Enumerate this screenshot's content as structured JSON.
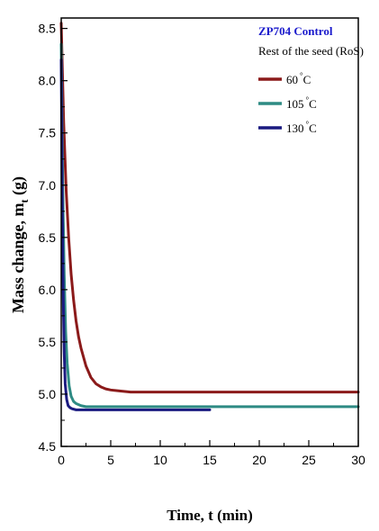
{
  "chart_data": {
    "type": "line",
    "xlabel": "Time, t (min)",
    "ylabel": "Mass change, m",
    "ylabel_subscript": "t",
    "ylabel_unit": " (g)",
    "xlim": [
      0,
      30
    ],
    "ylim": [
      4.5,
      8.6
    ],
    "xticks": [
      0,
      5,
      10,
      15,
      20,
      25,
      30
    ],
    "yticks": [
      4.5,
      5.0,
      5.5,
      6.0,
      6.5,
      7.0,
      7.5,
      8.0,
      8.5
    ],
    "grid": false,
    "legend_position": "top-right",
    "legend_title": "ZP704 Control",
    "legend_title_color": "#1a1acc",
    "legend_subtitle": "Rest of the seed (RoS)",
    "series": [
      {
        "name": "60 °C",
        "label_value": "60",
        "color": "#8b1a1a",
        "x": [
          0,
          0.25,
          0.5,
          0.75,
          1,
          1.25,
          1.5,
          1.75,
          2,
          2.5,
          3,
          3.5,
          4,
          4.5,
          5,
          6,
          7,
          8,
          10,
          15,
          20,
          25,
          30
        ],
        "y": [
          8.55,
          7.6,
          6.95,
          6.5,
          6.15,
          5.9,
          5.7,
          5.55,
          5.44,
          5.27,
          5.16,
          5.1,
          5.07,
          5.05,
          5.04,
          5.03,
          5.02,
          5.02,
          5.02,
          5.02,
          5.02,
          5.02,
          5.02
        ]
      },
      {
        "name": "105 °C",
        "label_value": "105",
        "color": "#2e8b84",
        "x": [
          0,
          0.15,
          0.3,
          0.45,
          0.6,
          0.8,
          1,
          1.25,
          1.5,
          2,
          2.5,
          3,
          4,
          5,
          10,
          15,
          20,
          25,
          30
        ],
        "y": [
          8.35,
          7.0,
          6.15,
          5.6,
          5.3,
          5.08,
          4.98,
          4.93,
          4.91,
          4.89,
          4.88,
          4.88,
          4.88,
          4.88,
          4.88,
          4.88,
          4.88,
          4.88,
          4.88
        ]
      },
      {
        "name": "130 °C",
        "label_value": "130",
        "color": "#1a1a80",
        "x": [
          0,
          0.1,
          0.2,
          0.3,
          0.4,
          0.55,
          0.7,
          0.9,
          1.1,
          1.5,
          2,
          3,
          5,
          10,
          15
        ],
        "y": [
          8.2,
          6.85,
          5.95,
          5.4,
          5.1,
          4.95,
          4.89,
          4.87,
          4.86,
          4.85,
          4.85,
          4.85,
          4.85,
          4.85,
          4.85
        ]
      }
    ]
  }
}
